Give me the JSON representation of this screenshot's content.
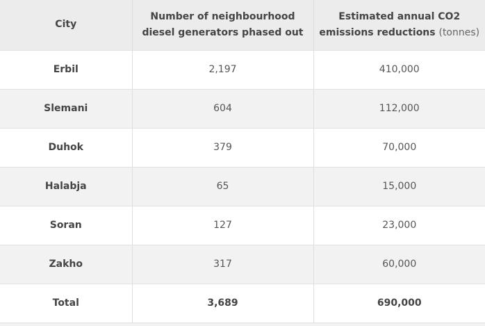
{
  "table": {
    "headers": {
      "city": "City",
      "generators": "Number of neighbourhood diesel generators phased out",
      "co2": "Estimated annual CO2 emissions reductions",
      "co2_unit": "(tonnes)"
    },
    "rows": [
      {
        "city": "Erbil",
        "generators": "2,197",
        "co2": "410,000"
      },
      {
        "city": "Slemani",
        "generators": "604",
        "co2": "112,000"
      },
      {
        "city": "Duhok",
        "generators": "379",
        "co2": "70,000"
      },
      {
        "city": "Halabja",
        "generators": "65",
        "co2": "15,000"
      },
      {
        "city": "Soran",
        "generators": "127",
        "co2": "23,000"
      },
      {
        "city": "Zakho",
        "generators": "317",
        "co2": "60,000"
      }
    ],
    "total": {
      "label": "Total",
      "generators": "3,689",
      "co2": "690,000"
    }
  },
  "colors": {
    "header_bg": "#ececec",
    "alt_row_bg": "#f2f2f2",
    "text": "#555555"
  }
}
